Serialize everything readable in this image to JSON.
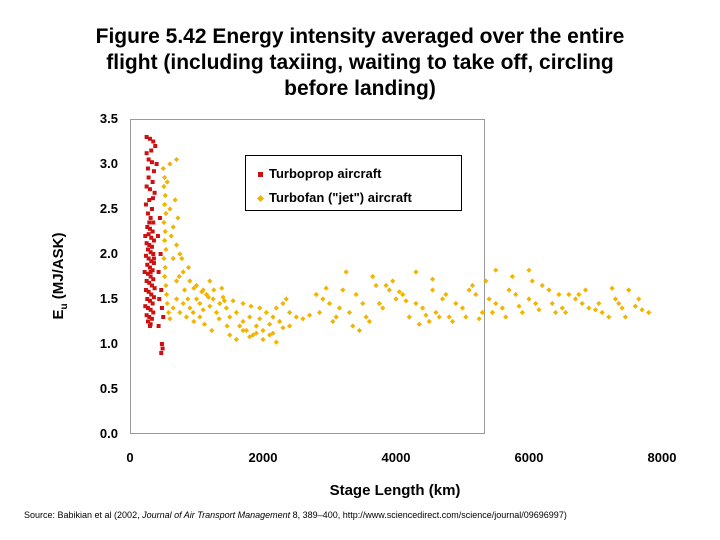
{
  "title_lines": [
    "Figure 5.42 Energy intensity averaged over the entire",
    "flight (including taxiing, waiting to take off, circling",
    "before landing)"
  ],
  "source": {
    "prefix": "Source: Babikian et al (2002, ",
    "journal": "Journal of Air Transport Management",
    "suffix": " 8, 389–400, http://www.sciencedirect.com/science/journal/09696997)"
  },
  "colors": {
    "turboprop": "#cc1111",
    "turbofan": "#f2b400",
    "frame": "#9a9a9a"
  },
  "chart_data": {
    "type": "scatter",
    "title": "",
    "xlabel": "Stage Length (km)",
    "ylabel_main": "E",
    "ylabel_sub": "u",
    "ylabel_rest": " (MJ/ASK)",
    "xlim": [
      0,
      8000
    ],
    "ylim": [
      0,
      3.5
    ],
    "xticks": [
      0,
      2000,
      4000,
      6000,
      8000
    ],
    "xtick_labels": [
      "0",
      "2000",
      "4000",
      "6000",
      "8000"
    ],
    "yticks": [
      0,
      0.5,
      1,
      1.5,
      2,
      2.5,
      3,
      3.5
    ],
    "ytick_labels": [
      "0.0",
      "0.5",
      "1.0",
      "1.5",
      "2.0",
      "2.5",
      "3.0",
      "3.5"
    ],
    "grid": false,
    "legend_position": "top-right",
    "series": [
      {
        "name": "Turboprop aircraft",
        "marker": "square",
        "points": [
          [
            250,
            3.3
          ],
          [
            300,
            3.28
          ],
          [
            350,
            3.25
          ],
          [
            380,
            3.2
          ],
          [
            320,
            3.15
          ],
          [
            250,
            3.12
          ],
          [
            280,
            3.05
          ],
          [
            330,
            3.02
          ],
          [
            270,
            2.95
          ],
          [
            360,
            2.92
          ],
          [
            400,
            3.0
          ],
          [
            280,
            2.85
          ],
          [
            340,
            2.8
          ],
          [
            250,
            2.75
          ],
          [
            300,
            2.72
          ],
          [
            370,
            2.68
          ],
          [
            290,
            2.6
          ],
          [
            240,
            2.55
          ],
          [
            330,
            2.5
          ],
          [
            270,
            2.45
          ],
          [
            310,
            2.4
          ],
          [
            350,
            2.35
          ],
          [
            260,
            2.3
          ],
          [
            300,
            2.28
          ],
          [
            340,
            2.25
          ],
          [
            280,
            2.22
          ],
          [
            230,
            2.2
          ],
          [
            320,
            2.18
          ],
          [
            360,
            2.15
          ],
          [
            250,
            2.12
          ],
          [
            290,
            2.1
          ],
          [
            330,
            2.08
          ],
          [
            270,
            2.05
          ],
          [
            310,
            2.02
          ],
          [
            350,
            2.0
          ],
          [
            240,
            1.98
          ],
          [
            280,
            1.95
          ],
          [
            320,
            1.92
          ],
          [
            360,
            1.9
          ],
          [
            260,
            1.88
          ],
          [
            300,
            1.85
          ],
          [
            340,
            1.82
          ],
          [
            220,
            1.8
          ],
          [
            270,
            1.78
          ],
          [
            310,
            1.75
          ],
          [
            350,
            1.72
          ],
          [
            250,
            1.7
          ],
          [
            290,
            1.68
          ],
          [
            330,
            1.65
          ],
          [
            370,
            1.62
          ],
          [
            240,
            1.6
          ],
          [
            280,
            1.58
          ],
          [
            320,
            1.55
          ],
          [
            360,
            1.52
          ],
          [
            260,
            1.5
          ],
          [
            300,
            1.48
          ],
          [
            340,
            1.45
          ],
          [
            230,
            1.42
          ],
          [
            270,
            1.4
          ],
          [
            310,
            1.38
          ],
          [
            350,
            1.35
          ],
          [
            250,
            1.32
          ],
          [
            290,
            1.3
          ],
          [
            330,
            1.28
          ],
          [
            270,
            1.25
          ],
          [
            310,
            1.22
          ],
          [
            300,
            1.2
          ],
          [
            450,
            2.4
          ],
          [
            420,
            2.2
          ],
          [
            460,
            2.0
          ],
          [
            430,
            1.8
          ],
          [
            470,
            1.6
          ],
          [
            440,
            1.5
          ],
          [
            480,
            1.4
          ],
          [
            500,
            1.3
          ],
          [
            430,
            1.2
          ],
          [
            480,
            1.0
          ],
          [
            490,
            0.95
          ],
          [
            470,
            0.9
          ],
          [
            310,
            1.8
          ],
          [
            360,
            1.95
          ],
          [
            290,
            2.35
          ],
          [
            345,
            2.62
          ]
        ]
      },
      {
        "name": "Turbofan (\"jet\") aircraft",
        "marker": "diamond",
        "points": [
          [
            500,
            2.95
          ],
          [
            520,
            2.85
          ],
          [
            510,
            2.75
          ],
          [
            530,
            2.65
          ],
          [
            520,
            2.55
          ],
          [
            540,
            2.45
          ],
          [
            510,
            2.35
          ],
          [
            530,
            2.25
          ],
          [
            520,
            2.15
          ],
          [
            540,
            2.05
          ],
          [
            510,
            1.95
          ],
          [
            530,
            1.85
          ],
          [
            520,
            1.75
          ],
          [
            540,
            1.65
          ],
          [
            550,
            1.55
          ],
          [
            560,
            1.45
          ],
          [
            580,
            1.35
          ],
          [
            600,
            1.28
          ],
          [
            650,
            1.4
          ],
          [
            700,
            1.5
          ],
          [
            750,
            1.35
          ],
          [
            800,
            1.45
          ],
          [
            850,
            1.3
          ],
          [
            900,
            1.4
          ],
          [
            950,
            1.35
          ],
          [
            1000,
            1.5
          ],
          [
            1050,
            1.45
          ],
          [
            1100,
            1.38
          ],
          [
            1150,
            1.55
          ],
          [
            1200,
            1.42
          ],
          [
            1250,
            1.5
          ],
          [
            1300,
            1.35
          ],
          [
            1350,
            1.45
          ],
          [
            1400,
            1.52
          ],
          [
            1450,
            1.4
          ],
          [
            1500,
            1.3
          ],
          [
            1550,
            1.48
          ],
          [
            1600,
            1.35
          ],
          [
            1650,
            1.2
          ],
          [
            1700,
            1.25
          ],
          [
            1750,
            1.15
          ],
          [
            1800,
            1.3
          ],
          [
            1850,
            1.1
          ],
          [
            1900,
            1.2
          ],
          [
            1950,
            1.28
          ],
          [
            2000,
            1.15
          ],
          [
            2050,
            1.35
          ],
          [
            2100,
            1.22
          ],
          [
            2150,
            1.3
          ],
          [
            2200,
            1.4
          ],
          [
            2250,
            1.25
          ],
          [
            2300,
            1.45
          ],
          [
            2350,
            1.5
          ],
          [
            2400,
            1.35
          ],
          [
            1500,
            1.1
          ],
          [
            1600,
            1.05
          ],
          [
            1700,
            1.15
          ],
          [
            1800,
            1.08
          ],
          [
            1900,
            1.12
          ],
          [
            2000,
            1.05
          ],
          [
            2100,
            1.1
          ],
          [
            2200,
            1.02
          ],
          [
            900,
            1.7
          ],
          [
            1000,
            1.65
          ],
          [
            1100,
            1.6
          ],
          [
            1200,
            1.7
          ],
          [
            800,
            1.8
          ],
          [
            750,
            2.0
          ],
          [
            700,
            2.1
          ],
          [
            650,
            2.3
          ],
          [
            600,
            2.5
          ],
          [
            720,
            2.4
          ],
          [
            680,
            2.6
          ],
          [
            560,
            2.8
          ],
          [
            600,
            3.0
          ],
          [
            700,
            3.05
          ],
          [
            620,
            2.2
          ],
          [
            780,
            1.95
          ],
          [
            880,
            1.85
          ],
          [
            960,
            1.62
          ],
          [
            1080,
            1.58
          ],
          [
            1180,
            1.52
          ],
          [
            1260,
            1.6
          ],
          [
            1380,
            1.62
          ],
          [
            1420,
            1.48
          ],
          [
            650,
            1.95
          ],
          [
            740,
            1.75
          ],
          [
            820,
            1.6
          ],
          [
            870,
            1.5
          ],
          [
            700,
            1.7
          ],
          [
            1120,
            1.22
          ],
          [
            1230,
            1.15
          ],
          [
            1340,
            1.28
          ],
          [
            1460,
            1.2
          ],
          [
            960,
            1.25
          ],
          [
            1050,
            1.3
          ],
          [
            1700,
            1.45
          ],
          [
            1820,
            1.42
          ],
          [
            1950,
            1.4
          ],
          [
            2300,
            1.18
          ],
          [
            2150,
            1.12
          ],
          [
            2400,
            1.2
          ],
          [
            2500,
            1.3
          ],
          [
            2600,
            1.28
          ],
          [
            2800,
            1.55
          ],
          [
            2900,
            1.5
          ],
          [
            3000,
            1.45
          ],
          [
            3100,
            1.3
          ],
          [
            3200,
            1.6
          ],
          [
            3300,
            1.35
          ],
          [
            3400,
            1.55
          ],
          [
            3500,
            1.45
          ],
          [
            3600,
            1.25
          ],
          [
            3700,
            1.65
          ],
          [
            3800,
            1.4
          ],
          [
            3900,
            1.6
          ],
          [
            4000,
            1.5
          ],
          [
            4100,
            1.55
          ],
          [
            4200,
            1.3
          ],
          [
            4300,
            1.45
          ],
          [
            4400,
            1.4
          ],
          [
            4500,
            1.25
          ],
          [
            4600,
            1.35
          ],
          [
            4700,
            1.5
          ],
          [
            4800,
            1.3
          ],
          [
            4900,
            1.45
          ],
          [
            5000,
            1.4
          ],
          [
            5100,
            1.6
          ],
          [
            5200,
            1.55
          ],
          [
            5300,
            1.35
          ],
          [
            5400,
            1.5
          ],
          [
            5500,
            1.45
          ],
          [
            5600,
            1.4
          ],
          [
            5700,
            1.6
          ],
          [
            5800,
            1.55
          ],
          [
            5900,
            1.35
          ],
          [
            6000,
            1.5
          ],
          [
            6100,
            1.45
          ],
          [
            6200,
            1.65
          ],
          [
            6300,
            1.6
          ],
          [
            6400,
            1.35
          ],
          [
            6500,
            1.4
          ],
          [
            6600,
            1.55
          ],
          [
            6700,
            1.5
          ],
          [
            6800,
            1.45
          ],
          [
            6900,
            1.4
          ],
          [
            7000,
            1.38
          ],
          [
            7100,
            1.35
          ],
          [
            7200,
            1.3
          ],
          [
            7300,
            1.5
          ],
          [
            7400,
            1.4
          ],
          [
            7500,
            1.6
          ],
          [
            7600,
            1.42
          ],
          [
            7700,
            1.38
          ],
          [
            7800,
            1.35
          ],
          [
            3350,
            1.2
          ],
          [
            3450,
            1.15
          ],
          [
            3550,
            1.3
          ],
          [
            3750,
            1.45
          ],
          [
            3850,
            1.65
          ],
          [
            3950,
            1.7
          ],
          [
            4050,
            1.58
          ],
          [
            4150,
            1.48
          ],
          [
            4350,
            1.22
          ],
          [
            4450,
            1.32
          ],
          [
            4550,
            1.6
          ],
          [
            4650,
            1.3
          ],
          [
            4750,
            1.55
          ],
          [
            4850,
            1.25
          ],
          [
            5050,
            1.3
          ],
          [
            5150,
            1.65
          ],
          [
            5250,
            1.28
          ],
          [
            5350,
            1.7
          ],
          [
            5450,
            1.35
          ],
          [
            5650,
            1.3
          ],
          [
            5750,
            1.75
          ],
          [
            5850,
            1.42
          ],
          [
            6050,
            1.7
          ],
          [
            6150,
            1.38
          ],
          [
            6350,
            1.45
          ],
          [
            6450,
            1.55
          ],
          [
            6550,
            1.35
          ],
          [
            6750,
            1.55
          ],
          [
            6850,
            1.6
          ],
          [
            7050,
            1.45
          ],
          [
            7250,
            1.62
          ],
          [
            7350,
            1.45
          ],
          [
            7450,
            1.3
          ],
          [
            7650,
            1.5
          ],
          [
            3050,
            1.25
          ],
          [
            3150,
            1.4
          ],
          [
            2950,
            1.62
          ],
          [
            2850,
            1.35
          ],
          [
            2700,
            1.32
          ],
          [
            5500,
            1.82
          ],
          [
            4300,
            1.8
          ],
          [
            3650,
            1.75
          ],
          [
            3250,
            1.8
          ],
          [
            4550,
            1.72
          ],
          [
            6000,
            1.82
          ]
        ]
      }
    ]
  }
}
